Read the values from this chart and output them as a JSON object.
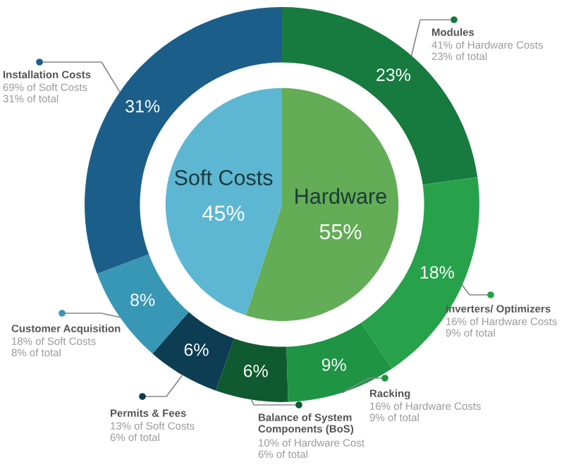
{
  "chart_data": {
    "type": "donut",
    "legend": "right",
    "categories": [
      "Hardware",
      "Soft Costs",
      "Modules",
      "Inverters/ Optimizers",
      "Racking",
      "Balance of System\nComponents (BoS)",
      "Permits & Fees",
      "Customer Acquisition",
      "Installation Costs"
    ],
    "colors": [
      "#62ad55",
      "#5db7d3",
      "#177a3e",
      "#27a24b",
      "#1e9444",
      "#0f5a2e",
      "#0d3d52",
      "#3797b4",
      "#1b5e8a"
    ],
    "series": [
      {
        "type": "pie",
        "values": [
          55,
          45,
          null,
          null,
          null,
          null,
          null,
          null,
          null
        ],
        "value_labels": [
          "55%",
          "45%",
          null,
          null,
          null,
          null,
          null,
          null,
          null
        ]
      },
      {
        "values": [
          null,
          null,
          23,
          18,
          9,
          6,
          6,
          8,
          31
        ],
        "value_labels": [
          null,
          null,
          "23%",
          "18%",
          "9%",
          "6%",
          "6%",
          "8%",
          "31%"
        ]
      }
    ],
    "annotations": [
      "41% of Hardware Costs\n23% of total",
      "16% of Hardware Costs\n9% of total",
      "16% of Hardware Costs\n9% of total",
      "10% of Hardware Cost\n6% of total",
      "13% of Soft Costs\n6% of total",
      "18% of Soft Costs\n8% of total",
      "69% of Soft Costs\n31% of total"
    ]
  }
}
